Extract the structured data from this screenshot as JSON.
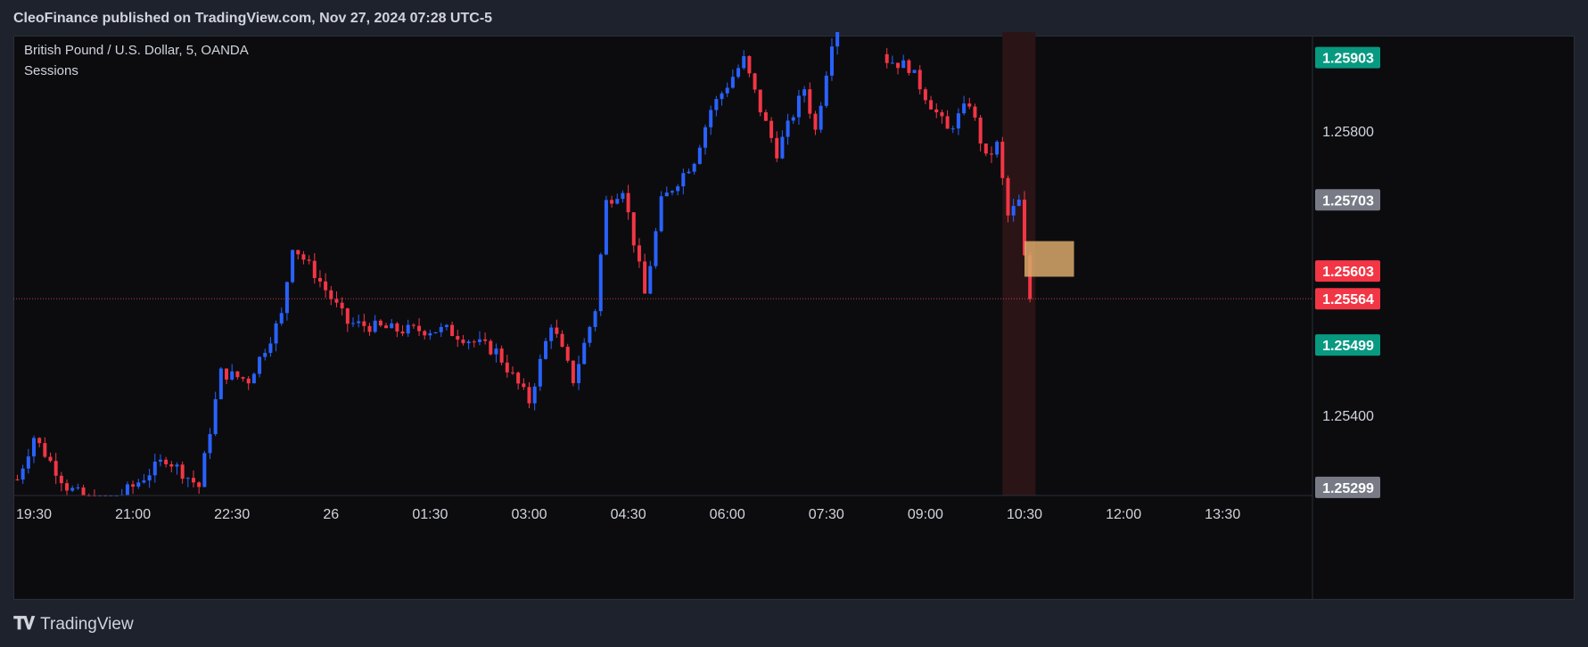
{
  "header": {
    "published": "CleoFinance published on TradingView.com, Nov 27, 2024 07:28 UTC-5"
  },
  "legend": {
    "symbol": "British Pound / U.S. Dollar, 5, OANDA",
    "indicator": "Sessions"
  },
  "footer": {
    "brand": "TradingView",
    "logo": "tradingview-logo-icon"
  },
  "colors": {
    "background": "#0c0c0f",
    "bull": "#2962ff",
    "bear": "#f23645",
    "session_band": "#2b1416",
    "zone": "#d9a86b",
    "current_line": "#c53b46"
  },
  "chart_data": {
    "type": "candlestick",
    "symbol": "British Pound / U.S. Dollar",
    "timeframe": "5",
    "ylim": [
      1.2525,
      1.2596
    ],
    "x_ticks": [
      "19:30",
      "21:00",
      "22:30",
      "26",
      "01:30",
      "03:00",
      "04:30",
      "06:00",
      "07:30",
      "09:00",
      "10:30",
      "12:00",
      "13:30"
    ],
    "y_ticks": [
      1.258,
      1.254
    ],
    "price_labels": [
      {
        "value": "1.25903",
        "color": "#089981"
      },
      {
        "value": "1.25800",
        "color": ""
      },
      {
        "value": "1.25703",
        "color": "#787b86"
      },
      {
        "value": "1.25603",
        "color": "#f23645"
      },
      {
        "value": "1.25564",
        "color": "#f23645"
      },
      {
        "value": "1.25499",
        "color": "#089981"
      },
      {
        "value": "1.25400",
        "color": ""
      },
      {
        "value": "1.25299",
        "color": "#787b86"
      }
    ],
    "current_price": 1.25564,
    "zone": {
      "from": "10:30",
      "to": "11:15",
      "low": 1.25595,
      "high": 1.25645
    },
    "session_band": {
      "from": "10:10",
      "to": "10:40"
    },
    "close_path": [
      {
        "t": "19:15",
        "c": 1.2531
      },
      {
        "t": "19:30",
        "c": 1.2537
      },
      {
        "t": "20:00",
        "c": 1.253
      },
      {
        "t": "20:30",
        "c": 1.2527
      },
      {
        "t": "21:00",
        "c": 1.253
      },
      {
        "t": "21:30",
        "c": 1.2534
      },
      {
        "t": "22:00",
        "c": 1.253
      },
      {
        "t": "22:20",
        "c": 1.2546
      },
      {
        "t": "22:45",
        "c": 1.2545
      },
      {
        "t": "23:15",
        "c": 1.2554
      },
      {
        "t": "23:25",
        "c": 1.2564
      },
      {
        "t": "23:45",
        "c": 1.256
      },
      {
        "t": "00:15",
        "c": 1.2553
      },
      {
        "t": "01:00",
        "c": 1.2552
      },
      {
        "t": "01:45",
        "c": 1.2552
      },
      {
        "t": "02:30",
        "c": 1.2549
      },
      {
        "t": "03:00",
        "c": 1.2542
      },
      {
        "t": "03:20",
        "c": 1.2553
      },
      {
        "t": "03:40",
        "c": 1.2545
      },
      {
        "t": "04:00",
        "c": 1.2555
      },
      {
        "t": "04:10",
        "c": 1.257
      },
      {
        "t": "04:25",
        "c": 1.2572
      },
      {
        "t": "04:45",
        "c": 1.2557
      },
      {
        "t": "05:00",
        "c": 1.257
      },
      {
        "t": "05:30",
        "c": 1.2576
      },
      {
        "t": "05:45",
        "c": 1.2583
      },
      {
        "t": "06:15",
        "c": 1.259
      },
      {
        "t": "06:30",
        "c": 1.2583
      },
      {
        "t": "06:45",
        "c": 1.2577
      },
      {
        "t": "07:10",
        "c": 1.2586
      },
      {
        "t": "07:20",
        "c": 1.258
      },
      {
        "t": "07:40",
        "c": 1.2597
      },
      {
        "t": "08:25",
        "c": 1.259
      },
      {
        "t": "08:45",
        "c": 1.2589
      },
      {
        "t": "09:00",
        "c": 1.2585
      },
      {
        "t": "09:20",
        "c": 1.258
      },
      {
        "t": "09:40",
        "c": 1.2584
      },
      {
        "t": "09:55",
        "c": 1.2576
      },
      {
        "t": "10:05",
        "c": 1.2578
      },
      {
        "t": "10:15",
        "c": 1.2568
      },
      {
        "t": "10:25",
        "c": 1.257
      },
      {
        "t": "10:30",
        "c": 1.2562
      },
      {
        "t": "10:35",
        "c": 1.25564
      }
    ]
  }
}
